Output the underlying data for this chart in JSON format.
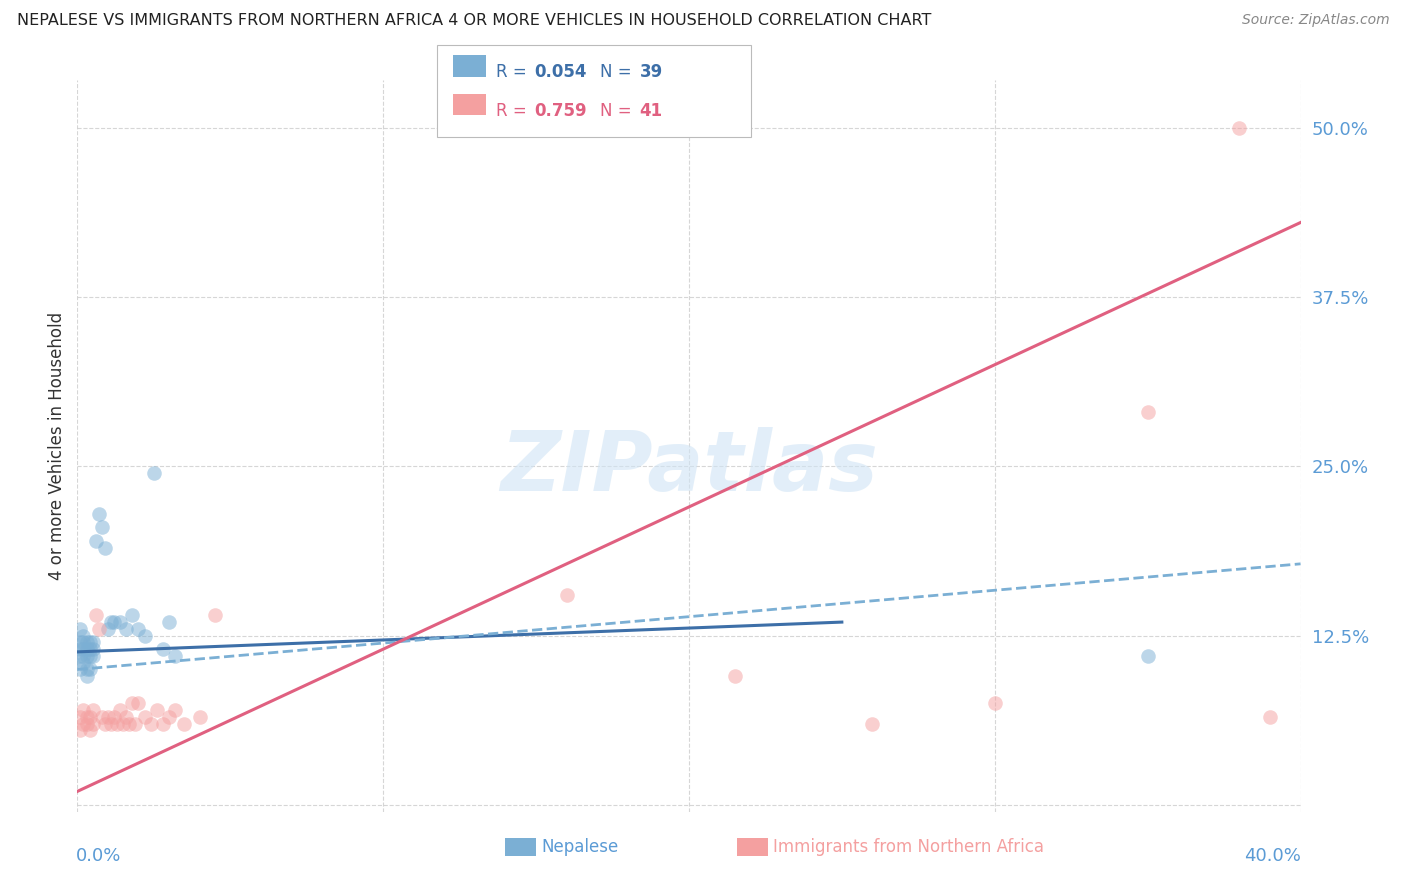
{
  "title": "NEPALESE VS IMMIGRANTS FROM NORTHERN AFRICA 4 OR MORE VEHICLES IN HOUSEHOLD CORRELATION CHART",
  "source": "Source: ZipAtlas.com",
  "ylabel": "4 or more Vehicles in Household",
  "legend_blue_R": "0.054",
  "legend_blue_N": "39",
  "legend_pink_R": "0.759",
  "legend_pink_N": "41",
  "legend_label_blue": "Nepalese",
  "legend_label_pink": "Immigrants from Northern Africa",
  "xlim": [
    0.0,
    0.4
  ],
  "ylim": [
    -0.005,
    0.535
  ],
  "yticks": [
    0.0,
    0.125,
    0.25,
    0.375,
    0.5
  ],
  "ytick_labels": [
    "",
    "12.5%",
    "25.0%",
    "37.5%",
    "50.0%"
  ],
  "xticks": [
    0.0,
    0.1,
    0.2,
    0.3,
    0.4
  ],
  "blue_scatter_x": [
    0.001,
    0.001,
    0.001,
    0.001,
    0.001,
    0.002,
    0.002,
    0.002,
    0.002,
    0.002,
    0.003,
    0.003,
    0.003,
    0.003,
    0.003,
    0.004,
    0.004,
    0.004,
    0.004,
    0.005,
    0.005,
    0.005,
    0.006,
    0.007,
    0.008,
    0.009,
    0.01,
    0.011,
    0.012,
    0.014,
    0.016,
    0.018,
    0.02,
    0.022,
    0.025,
    0.028,
    0.03,
    0.032,
    0.35
  ],
  "blue_scatter_y": [
    0.1,
    0.11,
    0.115,
    0.12,
    0.13,
    0.105,
    0.11,
    0.115,
    0.12,
    0.125,
    0.095,
    0.1,
    0.11,
    0.115,
    0.12,
    0.1,
    0.11,
    0.115,
    0.12,
    0.11,
    0.115,
    0.12,
    0.195,
    0.215,
    0.205,
    0.19,
    0.13,
    0.135,
    0.135,
    0.135,
    0.13,
    0.14,
    0.13,
    0.125,
    0.245,
    0.115,
    0.135,
    0.11,
    0.11
  ],
  "pink_scatter_x": [
    0.001,
    0.001,
    0.002,
    0.002,
    0.003,
    0.003,
    0.004,
    0.004,
    0.005,
    0.005,
    0.006,
    0.007,
    0.008,
    0.009,
    0.01,
    0.011,
    0.012,
    0.013,
    0.014,
    0.015,
    0.016,
    0.017,
    0.018,
    0.019,
    0.02,
    0.022,
    0.024,
    0.026,
    0.028,
    0.03,
    0.032,
    0.035,
    0.04,
    0.045,
    0.16,
    0.215,
    0.26,
    0.3,
    0.35,
    0.38,
    0.39
  ],
  "pink_scatter_y": [
    0.055,
    0.065,
    0.06,
    0.07,
    0.06,
    0.065,
    0.055,
    0.065,
    0.06,
    0.07,
    0.14,
    0.13,
    0.065,
    0.06,
    0.065,
    0.06,
    0.065,
    0.06,
    0.07,
    0.06,
    0.065,
    0.06,
    0.075,
    0.06,
    0.075,
    0.065,
    0.06,
    0.07,
    0.06,
    0.065,
    0.07,
    0.06,
    0.065,
    0.14,
    0.155,
    0.095,
    0.06,
    0.075,
    0.29,
    0.5,
    0.065
  ],
  "blue_solid_line_x": [
    0.0,
    0.25
  ],
  "blue_solid_line_y": [
    0.113,
    0.135
  ],
  "blue_dashed_line_x": [
    0.0,
    0.4
  ],
  "blue_dashed_line_y": [
    0.1,
    0.178
  ],
  "pink_line_x": [
    0.0,
    0.4
  ],
  "pink_line_y": [
    0.01,
    0.43
  ],
  "watermark_text": "ZIPatlas",
  "bg_color": "#ffffff",
  "blue_color": "#7bafd4",
  "pink_color": "#f4a0a0",
  "blue_line_color": "#3d6fa8",
  "pink_line_color": "#e06080",
  "title_color": "#222222",
  "axis_label_color": "#5b9bd5",
  "grid_color": "#cccccc",
  "watermark_color": "#d0e4f5"
}
